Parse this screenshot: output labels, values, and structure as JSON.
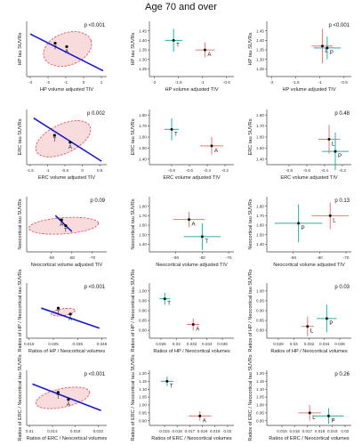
{
  "figure": {
    "title": "Age 70 and over"
  },
  "colors": {
    "A": "#e07b74",
    "T": "#20b2aa",
    "L": "#e07b74",
    "P": "#20b2aa",
    "line": "#1a1acc",
    "ellipse": "#f6cfd1",
    "ellipseStroke": "#e0474c",
    "point": "#000000"
  },
  "chart_data": [
    {
      "id": "r1c1",
      "type": "scatter",
      "xlabel": "HP volume adjusted TIV",
      "ylabel": "HP tau SUVRs",
      "pvalue": "p <0.001",
      "xlim": [
        -3.2,
        1.3
      ],
      "ylim": [
        -0.7,
        1.7
      ],
      "xticks": [
        -3,
        -2,
        -1,
        0,
        1
      ],
      "yticks": [],
      "ellipse": {
        "cx": -0.9,
        "cy": 0.5,
        "rx": 1.4,
        "ry": 0.7,
        "angle": -20
      },
      "line": [
        [
          -3,
          1.15
        ],
        [
          1.1,
          -0.45
        ]
      ],
      "points": [
        {
          "label": "T",
          "x": -1.6,
          "y": 0.75
        },
        {
          "label": "A",
          "x": -0.95,
          "y": 0.6
        }
      ]
    },
    {
      "id": "r1c2",
      "type": "errorbar",
      "xlabel": "HP volume adjusted TIV",
      "ylabel": "HP tau SUVRs",
      "xlim": [
        -2.1,
        -0.35
      ],
      "ylim": [
        1.21,
        1.5
      ],
      "xticks": [
        -2.0,
        -1.5,
        -1.0,
        -0.5
      ],
      "yticks": [
        1.25,
        1.3,
        1.35,
        1.4,
        1.45
      ],
      "points": [
        {
          "label": "T",
          "x": -1.6,
          "y": 1.4,
          "xerr": 0.18,
          "yerr": 0.06
        },
        {
          "label": "A",
          "x": -0.95,
          "y": 1.35,
          "xerr": 0.2,
          "yerr": 0.04
        }
      ]
    },
    {
      "id": "r1c3",
      "type": "errorbar",
      "xlabel": "HP volume adjusted TIV",
      "ylabel": "HP tau SUVRs",
      "pvalue": "p <0.001",
      "xlim": [
        -2.1,
        -0.35
      ],
      "ylim": [
        1.21,
        1.5
      ],
      "xticks": [
        -2.0,
        -1.5,
        -1.0,
        -0.5
      ],
      "yticks": [
        1.25,
        1.3,
        1.35,
        1.4,
        1.45
      ],
      "points": [
        {
          "label": "L",
          "x": -0.95,
          "y": 1.37,
          "xerr": 0.22,
          "yerr": 0.09
        },
        {
          "label": "P",
          "x": -0.85,
          "y": 1.36,
          "xerr": 0.28,
          "yerr": 0.06
        }
      ]
    },
    {
      "id": "r2c1",
      "type": "scatter",
      "xlabel": "ERC volume adjusted TIV",
      "ylabel": "ERC tau SUVRs",
      "pvalue": "p 0.002",
      "xlim": [
        -1.6,
        0.7
      ],
      "ylim": [
        0,
        1.6
      ],
      "xticks": [
        -1.5,
        -1.0,
        -0.5,
        0.0,
        0.5
      ],
      "yticks": [],
      "ellipse": {
        "cx": -0.55,
        "cy": 0.75,
        "rx": 0.85,
        "ry": 0.42,
        "angle": -25
      },
      "line": [
        [
          -1.4,
          1.35
        ],
        [
          0.55,
          0.1
        ]
      ],
      "points": [
        {
          "label": "T",
          "x": -0.8,
          "y": 0.85
        },
        {
          "label": "A",
          "x": -0.35,
          "y": 0.65
        }
      ]
    },
    {
      "id": "r2c2",
      "type": "errorbar",
      "xlabel": "ERC volume adjusted TIV",
      "ylabel": "ERC tau SUVRs",
      "xlim": [
        -1.05,
        -0.1
      ],
      "ylim": [
        1.35,
        1.85
      ],
      "xticks": [
        -0.8,
        -0.6,
        -0.4,
        -0.2
      ],
      "yticks": [
        1.4,
        1.5,
        1.6,
        1.7,
        1.8
      ],
      "points": [
        {
          "label": "T",
          "x": -0.8,
          "y": 1.67,
          "xerr": 0.08,
          "yerr": 0.1
        },
        {
          "label": "A",
          "x": -0.35,
          "y": 1.52,
          "xerr": 0.13,
          "yerr": 0.08
        }
      ]
    },
    {
      "id": "r2c3",
      "type": "errorbar",
      "xlabel": "ERC volume adjusted TIV",
      "ylabel": "ERC tau SUVRs",
      "pvalue": "p 0.48",
      "xlim": [
        -1.05,
        -0.1
      ],
      "ylim": [
        1.35,
        1.85
      ],
      "xticks": [
        -0.8,
        -0.6,
        -0.4,
        -0.2
      ],
      "yticks": [
        1.4,
        1.5,
        1.6,
        1.7,
        1.8
      ],
      "points": [
        {
          "label": "L",
          "x": -0.35,
          "y": 1.58,
          "xerr": 0.12,
          "yerr": 0.13
        },
        {
          "label": "P",
          "x": -0.28,
          "y": 1.47,
          "xerr": 0.15,
          "yerr": 0.17
        }
      ]
    },
    {
      "id": "r3c1",
      "type": "scatter",
      "xlabel": "Neocortical volume adjusted TIV",
      "ylabel": "Neocortical tau SUVRs",
      "pvalue": "p 0.09",
      "xlim": [
        -102,
        -63
      ],
      "ylim": [
        0.5,
        2.4
      ],
      "xticks": [
        -90,
        -80,
        -70
      ],
      "yticks": [],
      "ellipse": {
        "cx": -84,
        "cy": 1.4,
        "rx": 17,
        "ry": 0.28,
        "angle": -4
      },
      "line": [
        [
          -88,
          1.75
        ],
        [
          -80,
          1.2
        ]
      ],
      "points": [
        {
          "label": "A",
          "x": -85,
          "y": 1.6
        },
        {
          "label": "T",
          "x": -83,
          "y": 1.4
        }
      ]
    },
    {
      "id": "r3c2",
      "type": "errorbar",
      "xlabel": "Neocortical volume adjusted TIV",
      "ylabel": "Neocortical tau SUVRs",
      "xlim": [
        -100,
        -68
      ],
      "ylim": [
        1.32,
        1.9
      ],
      "xticks": [
        -90,
        -80,
        -70
      ],
      "yticks": [
        1.4,
        1.5,
        1.6,
        1.7,
        1.8
      ],
      "points": [
        {
          "label": "A",
          "x": -85,
          "y": 1.66,
          "xerr": 6,
          "yerr": 0.08
        },
        {
          "label": "T",
          "x": -80,
          "y": 1.48,
          "xerr": 7,
          "yerr": 0.14
        }
      ]
    },
    {
      "id": "r3c3",
      "type": "errorbar",
      "xlabel": "Neocortical volume adjusted TIV",
      "ylabel": "Neocortical tau SUVRs",
      "pvalue": "p 0.13",
      "xlim": [
        -100,
        -68
      ],
      "ylim": [
        1.32,
        1.9
      ],
      "xticks": [
        -90,
        -80,
        -70
      ],
      "yticks": [
        1.4,
        1.5,
        1.6,
        1.7,
        1.8
      ],
      "points": [
        {
          "label": "L",
          "x": -76,
          "y": 1.7,
          "xerr": 7,
          "yerr": 0.14
        },
        {
          "label": "P",
          "x": -88,
          "y": 1.62,
          "xerr": 9,
          "yerr": 0.2
        }
      ]
    },
    {
      "id": "r4c1",
      "type": "scatter",
      "xlabel": "Ratios of HP / Neocortical volumes",
      "ylabel": "Ratios of HP / Neocortical tau SUVRs",
      "pvalue": "p <0.001",
      "xlim": [
        0.014,
        0.047
      ],
      "ylim": [
        0.7,
        1.25
      ],
      "xticks": [
        0.015,
        0.025,
        0.035,
        0.045
      ],
      "yticks": [],
      "ellipse": {
        "cx": 0.029,
        "cy": 0.96,
        "rx": 0.005,
        "ry": 0.035,
        "angle": -8
      },
      "line": [
        [
          0.02,
          1.0
        ],
        [
          0.044,
          0.8
        ]
      ],
      "points": [
        {
          "label": "T",
          "x": 0.027,
          "y": 1.0
        },
        {
          "label": "A",
          "x": 0.032,
          "y": 0.94
        }
      ]
    },
    {
      "id": "r4c2",
      "type": "errorbar",
      "xlabel": "Ratios of HP / Neocortical volumes",
      "ylabel": "Ratios of HP / Neocortical tau SUVRs",
      "xlim": [
        0.0265,
        0.0375
      ],
      "ylim": [
        0.76,
        1.04
      ],
      "xticks": [
        0.028,
        0.03,
        0.032,
        0.034,
        0.036
      ],
      "yticks": [
        0.8,
        0.85,
        0.9,
        0.95,
        1.0
      ],
      "points": [
        {
          "label": "T",
          "x": 0.0285,
          "y": 0.96,
          "xerr": 0.0007,
          "yerr": 0.03
        },
        {
          "label": "A",
          "x": 0.0322,
          "y": 0.83,
          "xerr": 0.0008,
          "yerr": 0.03
        }
      ]
    },
    {
      "id": "r4c3",
      "type": "errorbar",
      "xlabel": "Ratios of HP / Neocortical volumes",
      "ylabel": "Ratios of HP / Neocortical tau SUVRs",
      "pvalue": "p 0.03",
      "xlim": [
        0.0265,
        0.0375
      ],
      "ylim": [
        0.76,
        1.04
      ],
      "xticks": [
        0.028,
        0.03,
        0.032,
        0.034,
        0.036
      ],
      "yticks": [
        0.8,
        0.85,
        0.9,
        0.95,
        1.0
      ],
      "points": [
        {
          "label": "L",
          "x": 0.0318,
          "y": 0.82,
          "xerr": 0.0008,
          "yerr": 0.05
        },
        {
          "label": "P",
          "x": 0.0343,
          "y": 0.86,
          "xerr": 0.0013,
          "yerr": 0.07
        }
      ]
    },
    {
      "id": "r5c1",
      "type": "scatter",
      "xlabel": "Ratios of ERC / Neocortical volumes",
      "ylabel": "Ratios of ERC / Neocortical tau SUVRs",
      "pvalue": "p <0.001",
      "xlim": [
        0.0095,
        0.0235
      ],
      "ylim": [
        0.55,
        1.55
      ],
      "xticks": [
        0.01,
        0.014,
        0.018,
        0.022
      ],
      "yticks": [],
      "ellipse": {
        "cx": 0.0158,
        "cy": 1.05,
        "rx": 0.0048,
        "ry": 0.17,
        "angle": -12
      },
      "line": [
        [
          0.0105,
          1.3
        ],
        [
          0.0225,
          0.82
        ]
      ],
      "points": [
        {
          "label": "T",
          "x": 0.015,
          "y": 1.15
        },
        {
          "label": "A",
          "x": 0.0168,
          "y": 1.02
        }
      ]
    },
    {
      "id": "r5c2",
      "type": "errorbar",
      "xlabel": "Ratios of ERC / Neocortical volumes",
      "ylabel": "Ratios of ERC / Neocortical tau SUVRs",
      "xlim": [
        0.0138,
        0.0205
      ],
      "ylim": [
        0.87,
        1.22
      ],
      "xticks": [
        0.015,
        0.016,
        0.017,
        0.018,
        0.019,
        0.02
      ],
      "yticks": [
        0.9,
        0.95,
        1.0,
        1.05,
        1.1,
        1.15,
        1.2
      ],
      "points": [
        {
          "label": "T",
          "x": 0.0152,
          "y": 1.15,
          "xerr": 0.0005,
          "yerr": 0.03
        },
        {
          "label": "A",
          "x": 0.0178,
          "y": 0.93,
          "xerr": 0.0009,
          "yerr": 0.03
        }
      ]
    },
    {
      "id": "r5c3",
      "type": "errorbar",
      "xlabel": "Ratios of ERC / Neocortical volumes",
      "ylabel": "Ratios of ERC / Neocortical tau SUVRs",
      "pvalue": "p 0.26",
      "xlim": [
        0.0138,
        0.0205
      ],
      "ylim": [
        0.87,
        1.22
      ],
      "xticks": [
        0.015,
        0.016,
        0.017,
        0.018,
        0.019,
        0.02
      ],
      "yticks": [
        0.9,
        0.95,
        1.0,
        1.05,
        1.1,
        1.15,
        1.2
      ],
      "points": [
        {
          "label": "L",
          "x": 0.0172,
          "y": 0.95,
          "xerr": 0.0009,
          "yerr": 0.05
        },
        {
          "label": "P",
          "x": 0.0187,
          "y": 0.93,
          "xerr": 0.0012,
          "yerr": 0.05
        }
      ]
    }
  ]
}
